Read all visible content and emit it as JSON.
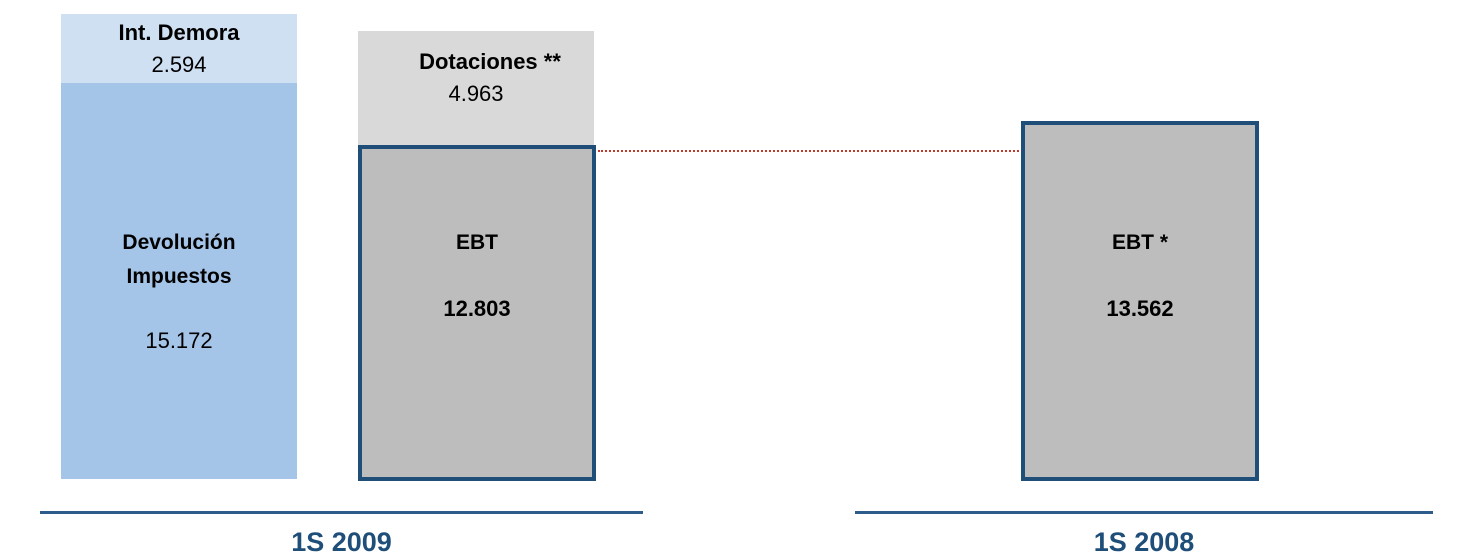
{
  "chart_data": {
    "type": "bar",
    "stacked": true,
    "title": "",
    "xlabel": "",
    "ylabel": "",
    "categories": [
      "1S 2009",
      "1S 2008"
    ],
    "bars": [
      {
        "category": "1S 2009",
        "segments": [
          {
            "name": "Devolución Impuestos",
            "name_lines": [
              "Devolución",
              "Impuestos"
            ],
            "value": 15172,
            "value_label": "15.172",
            "base": 0,
            "color": "#a4c4e8"
          },
          {
            "name": "Int. Demora",
            "value": 2594,
            "value_label": "2.594",
            "base": 15172,
            "color": "#cfe0f3"
          }
        ]
      },
      {
        "category": "1S 2009",
        "segments": [
          {
            "name": "EBT",
            "value": 12803,
            "value_label": "12.803",
            "base": 0,
            "color": "#bdbdbd",
            "border_color": "#1f4e79"
          },
          {
            "name": "Dotaciones **",
            "value": 4963,
            "value_label": "4.963",
            "base": 12803,
            "color": "#d9d9d9"
          }
        ]
      },
      {
        "category": "1S 2008",
        "segments": [
          {
            "name": "EBT *",
            "value": 13562,
            "value_label": "13.562",
            "base": 0,
            "color": "#bdbdbd",
            "border_color": "#1f4e79"
          }
        ]
      }
    ],
    "reference_line": {
      "value": 13562,
      "color": "#c0392b",
      "style": "dotted"
    },
    "ylim": [
      0,
      17766
    ]
  }
}
